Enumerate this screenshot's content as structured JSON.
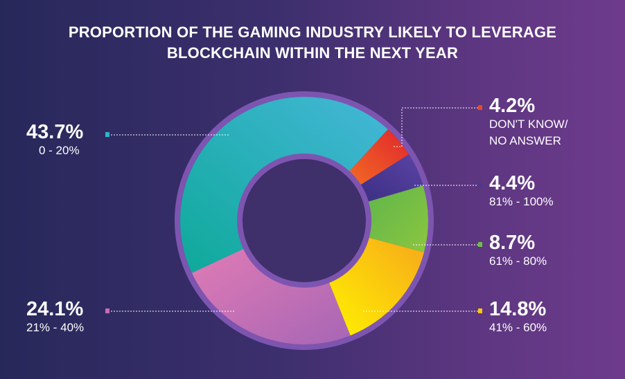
{
  "chart_data": {
    "type": "pie",
    "style": "donut",
    "title_lines": [
      "PROPORTION OF THE GAMING INDUSTRY LIKELY TO LEVERAGE",
      "BLOCKCHAIN WITHIN THE NEXT YEAR"
    ],
    "slices": [
      {
        "category": "0 - 20%",
        "value": 43.7,
        "label": "43.7%",
        "color": "#2fb3c6"
      },
      {
        "category": "DON'T KNOW/ NO ANSWER",
        "value": 4.2,
        "label": "4.2%",
        "color": "#e34a2a"
      },
      {
        "category": "81% - 100%",
        "value": 4.4,
        "label": "4.4%",
        "color": "#4a3a8c"
      },
      {
        "category": "61% - 80%",
        "value": 8.7,
        "label": "8.7%",
        "color": "#6fbf45"
      },
      {
        "category": "41% - 60%",
        "value": 14.8,
        "label": "14.8%",
        "color": "#f9c713"
      },
      {
        "category": "21% - 40%",
        "value": 24.1,
        "label": "24.1%",
        "color": "#c86bb6"
      }
    ]
  },
  "labels": {
    "slice_0_pct": "43.7%",
    "slice_0_cat": "0 - 20%",
    "slice_1_pct": "4.2%",
    "slice_1_cat_line1": "DON'T KNOW/",
    "slice_1_cat_line2": "NO ANSWER",
    "slice_2_pct": "4.4%",
    "slice_2_cat": "81% - 100%",
    "slice_3_pct": "8.7%",
    "slice_3_cat": "61% - 80%",
    "slice_4_pct": "14.8%",
    "slice_4_cat": "41% - 60%",
    "slice_5_pct": "24.1%",
    "slice_5_cat": "21% - 40%"
  }
}
